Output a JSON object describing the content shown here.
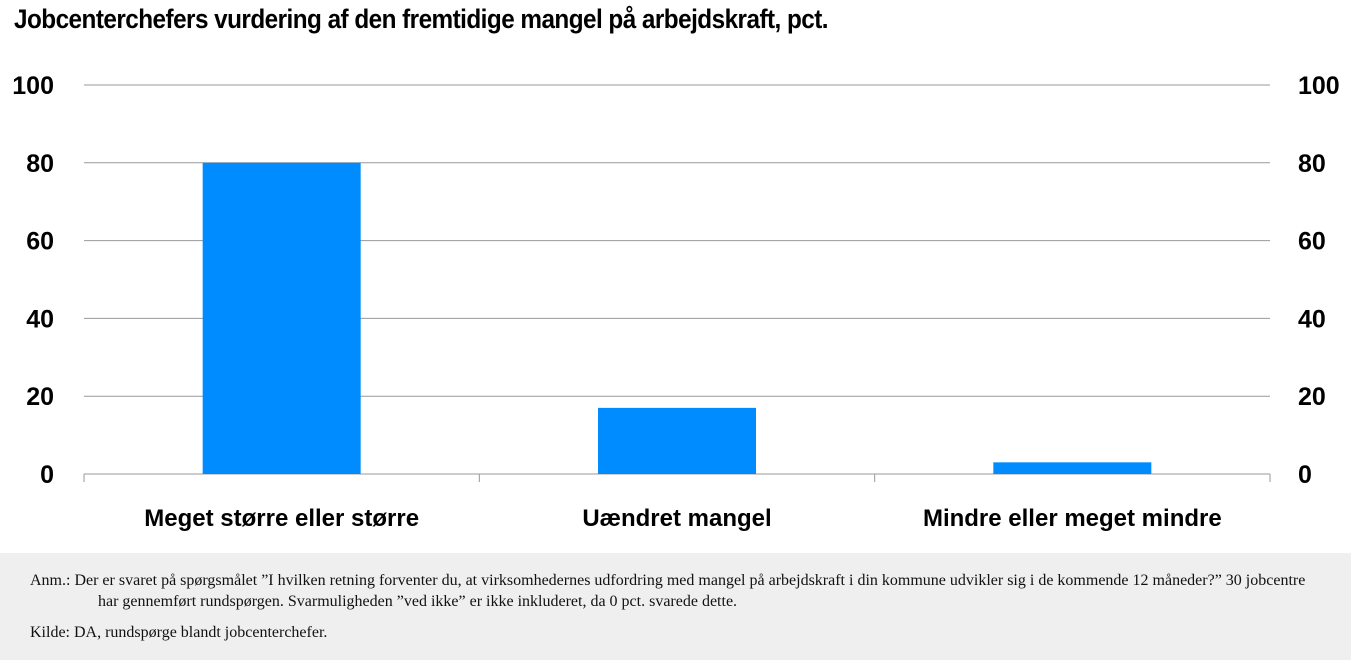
{
  "title": "Jobcenterchefers vurdering af den fremtidige mangel på arbejdskraft, pct.",
  "chart_data": {
    "type": "bar",
    "categories": [
      "Meget større eller større",
      "Uændret mangel",
      "Mindre eller meget mindre"
    ],
    "values": [
      80,
      17,
      3
    ],
    "ylim": [
      0,
      100
    ],
    "yticks": [
      0,
      20,
      40,
      60,
      80,
      100
    ],
    "xlabel": "",
    "ylabel": "",
    "grid": true,
    "secondary_axis": true,
    "bar_color": "#008cff",
    "grid_color": "#999999"
  },
  "note": {
    "anm": "Anm.: Der er svaret på spørgsmålet ”I hvilken retning forventer du, at virksomhedernes udfordring med mangel på arbejdskraft i din kommune udvikler sig i de kommende 12 måneder?” 30 jobcentre har gennemført rundspørgen. Svarmuligheden ”ved ikke” er ikke inkluderet, da 0 pct. svarede dette.",
    "kilde": "Kilde: DA, rundspørge blandt jobcenterchefer."
  }
}
